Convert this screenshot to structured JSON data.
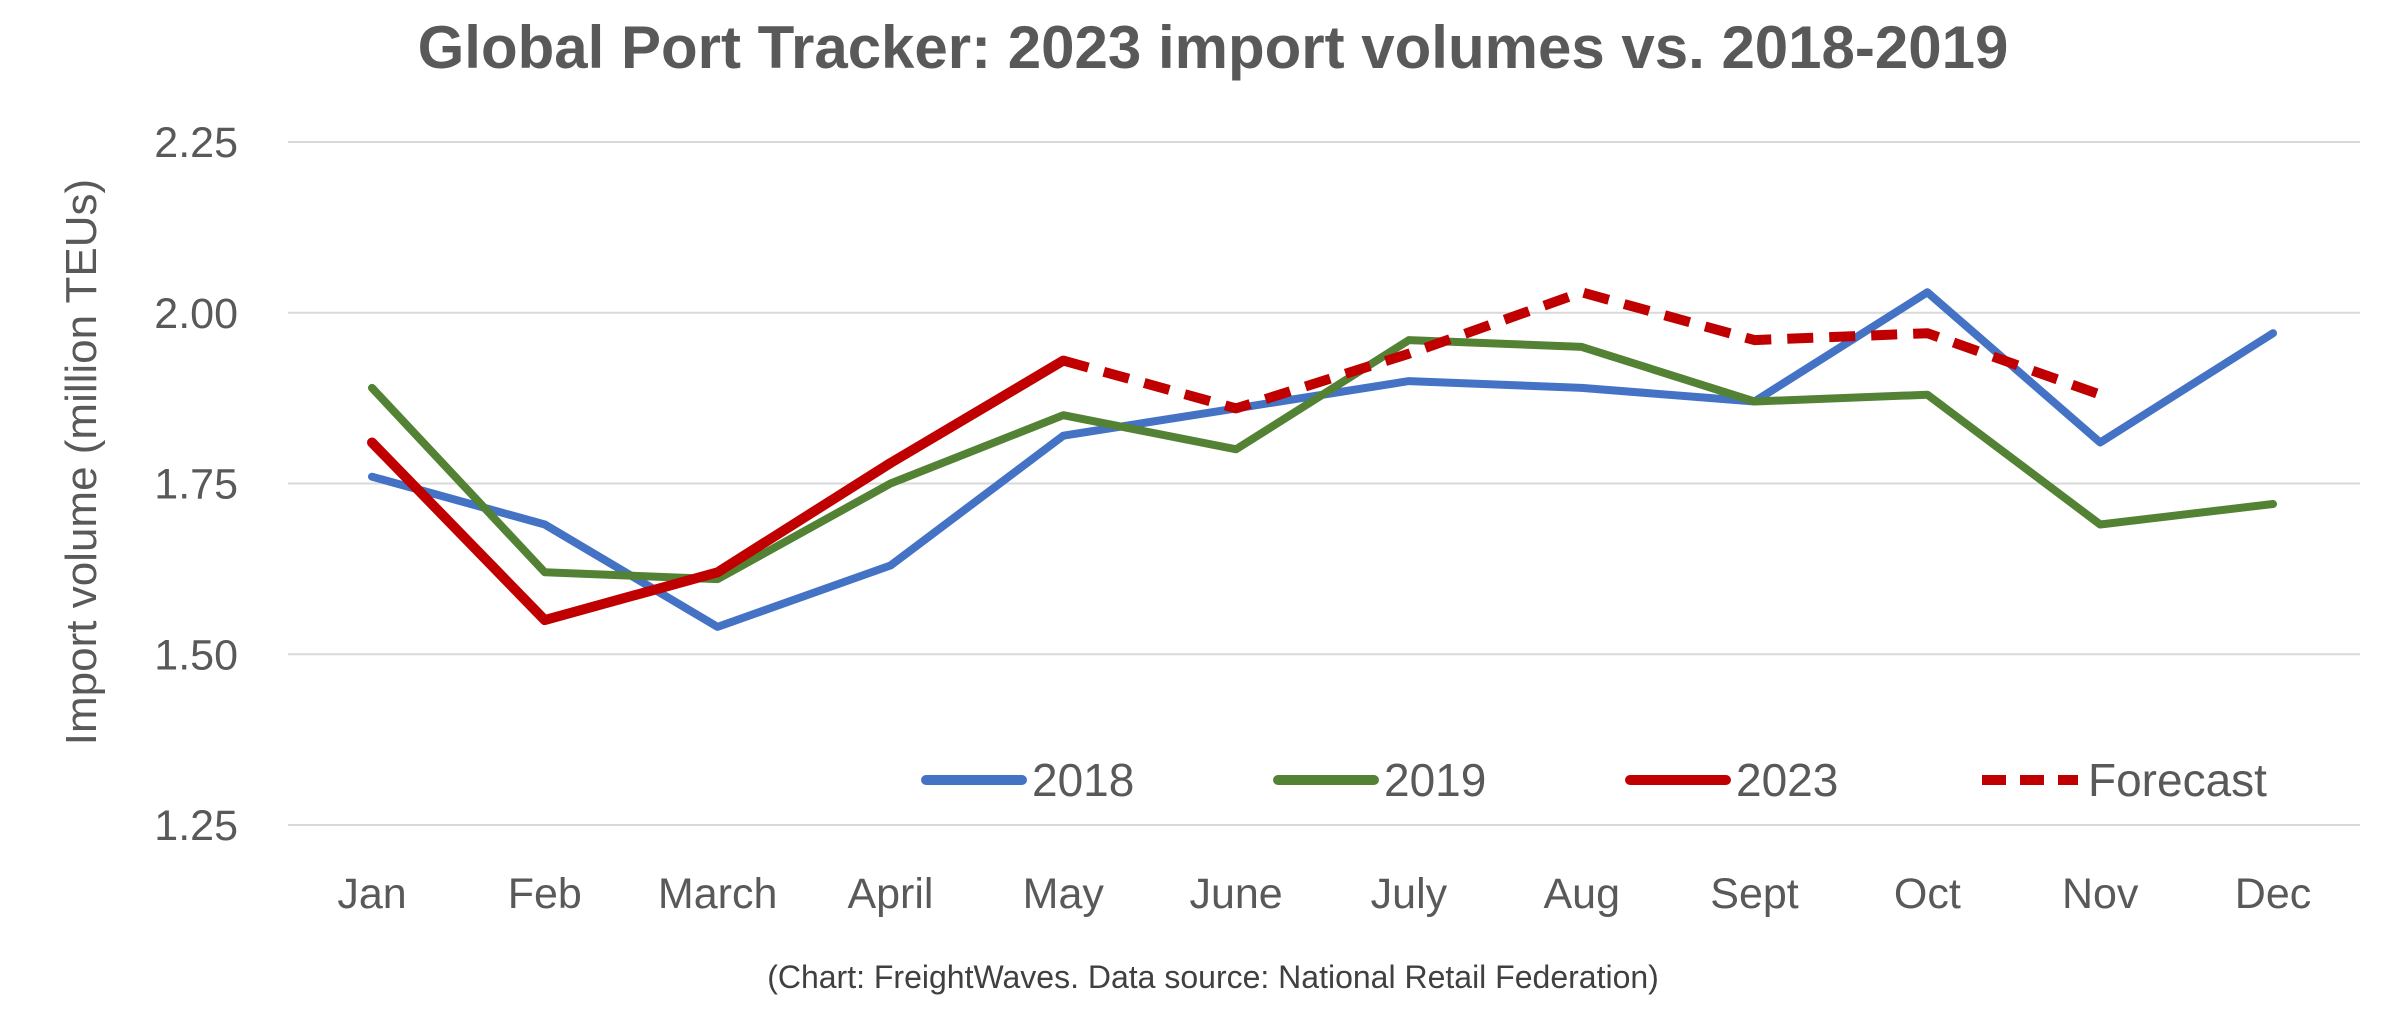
{
  "chart_data": {
    "type": "line",
    "title": "Global Port Tracker: 2023 import volumes vs. 2018-2019",
    "ylabel": "Import volume (million TEUs)",
    "xlabel": "",
    "caption": "(Chart: FreightWaves. Data source: National Retail Federation)",
    "categories": [
      "Jan",
      "Feb",
      "March",
      "April",
      "May",
      "June",
      "July",
      "Aug",
      "Sept",
      "Oct",
      "Nov",
      "Dec"
    ],
    "ylim": [
      1.25,
      2.25
    ],
    "yticks": [
      "1.25",
      "1.50",
      "1.75",
      "2.00",
      "2.25"
    ],
    "grid": true,
    "legend_position": "bottom-right",
    "series": [
      {
        "name": "2018",
        "color": "#4472c4",
        "style": "solid",
        "values": [
          1.76,
          1.69,
          1.54,
          1.63,
          1.82,
          1.86,
          1.9,
          1.89,
          1.87,
          2.03,
          1.81,
          1.97
        ]
      },
      {
        "name": "2019",
        "color": "#548235",
        "style": "solid",
        "values": [
          1.89,
          1.62,
          1.61,
          1.75,
          1.85,
          1.8,
          1.96,
          1.95,
          1.87,
          1.88,
          1.69,
          1.72
        ]
      },
      {
        "name": "2023",
        "color": "#c00000",
        "style": "solid",
        "values": [
          1.81,
          1.55,
          1.62,
          1.78,
          1.93,
          null,
          null,
          null,
          null,
          null,
          null,
          null
        ]
      },
      {
        "name": "Forecast",
        "color": "#c00000",
        "style": "dashed",
        "values": [
          null,
          null,
          null,
          null,
          1.93,
          1.86,
          1.94,
          2.03,
          1.96,
          1.97,
          1.88,
          null
        ]
      }
    ]
  }
}
